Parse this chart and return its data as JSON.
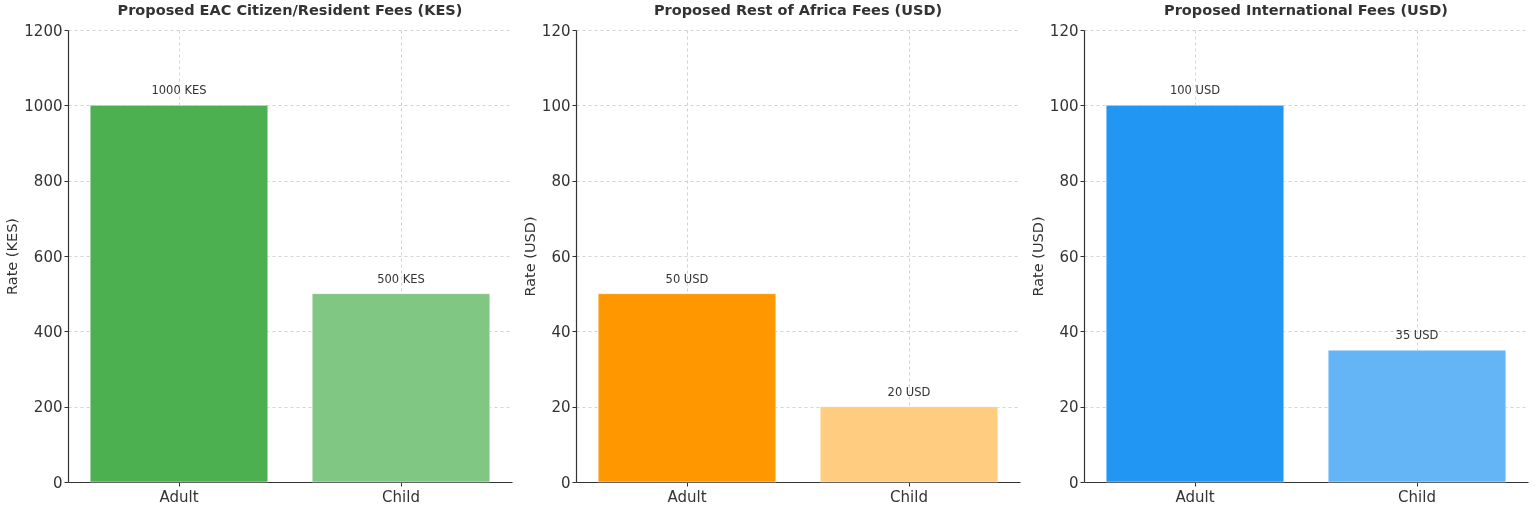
{
  "chart_data": [
    {
      "type": "bar",
      "title": "Proposed EAC Citizen/Resident Fees (KES)",
      "ylabel": "Rate (KES)",
      "categories": [
        "Adult",
        "Child"
      ],
      "values": [
        1000,
        500
      ],
      "colors": [
        "#4caf50",
        "#81c784"
      ],
      "value_labels": [
        "1000 KES",
        "500 KES"
      ],
      "ylim": [
        0,
        1200
      ],
      "yticks": [
        0,
        200,
        400,
        600,
        800,
        1000,
        1200
      ],
      "grid": true
    },
    {
      "type": "bar",
      "title": "Proposed Rest of Africa Fees (USD)",
      "ylabel": "Rate (USD)",
      "categories": [
        "Adult",
        "Child"
      ],
      "values": [
        50,
        20
      ],
      "colors": [
        "#ff9800",
        "#ffcc80"
      ],
      "value_labels": [
        "50 USD",
        "20 USD"
      ],
      "ylim": [
        0,
        120
      ],
      "yticks": [
        0,
        20,
        40,
        60,
        80,
        100,
        120
      ],
      "grid": true
    },
    {
      "type": "bar",
      "title": "Proposed International Fees (USD)",
      "ylabel": "Rate (USD)",
      "categories": [
        "Adult",
        "Child"
      ],
      "values": [
        100,
        35
      ],
      "colors": [
        "#2196f3",
        "#64b5f6"
      ],
      "value_labels": [
        "100 USD",
        "35 USD"
      ],
      "ylim": [
        0,
        120
      ],
      "yticks": [
        0,
        20,
        40,
        60,
        80,
        100,
        120
      ],
      "grid": true
    }
  ]
}
